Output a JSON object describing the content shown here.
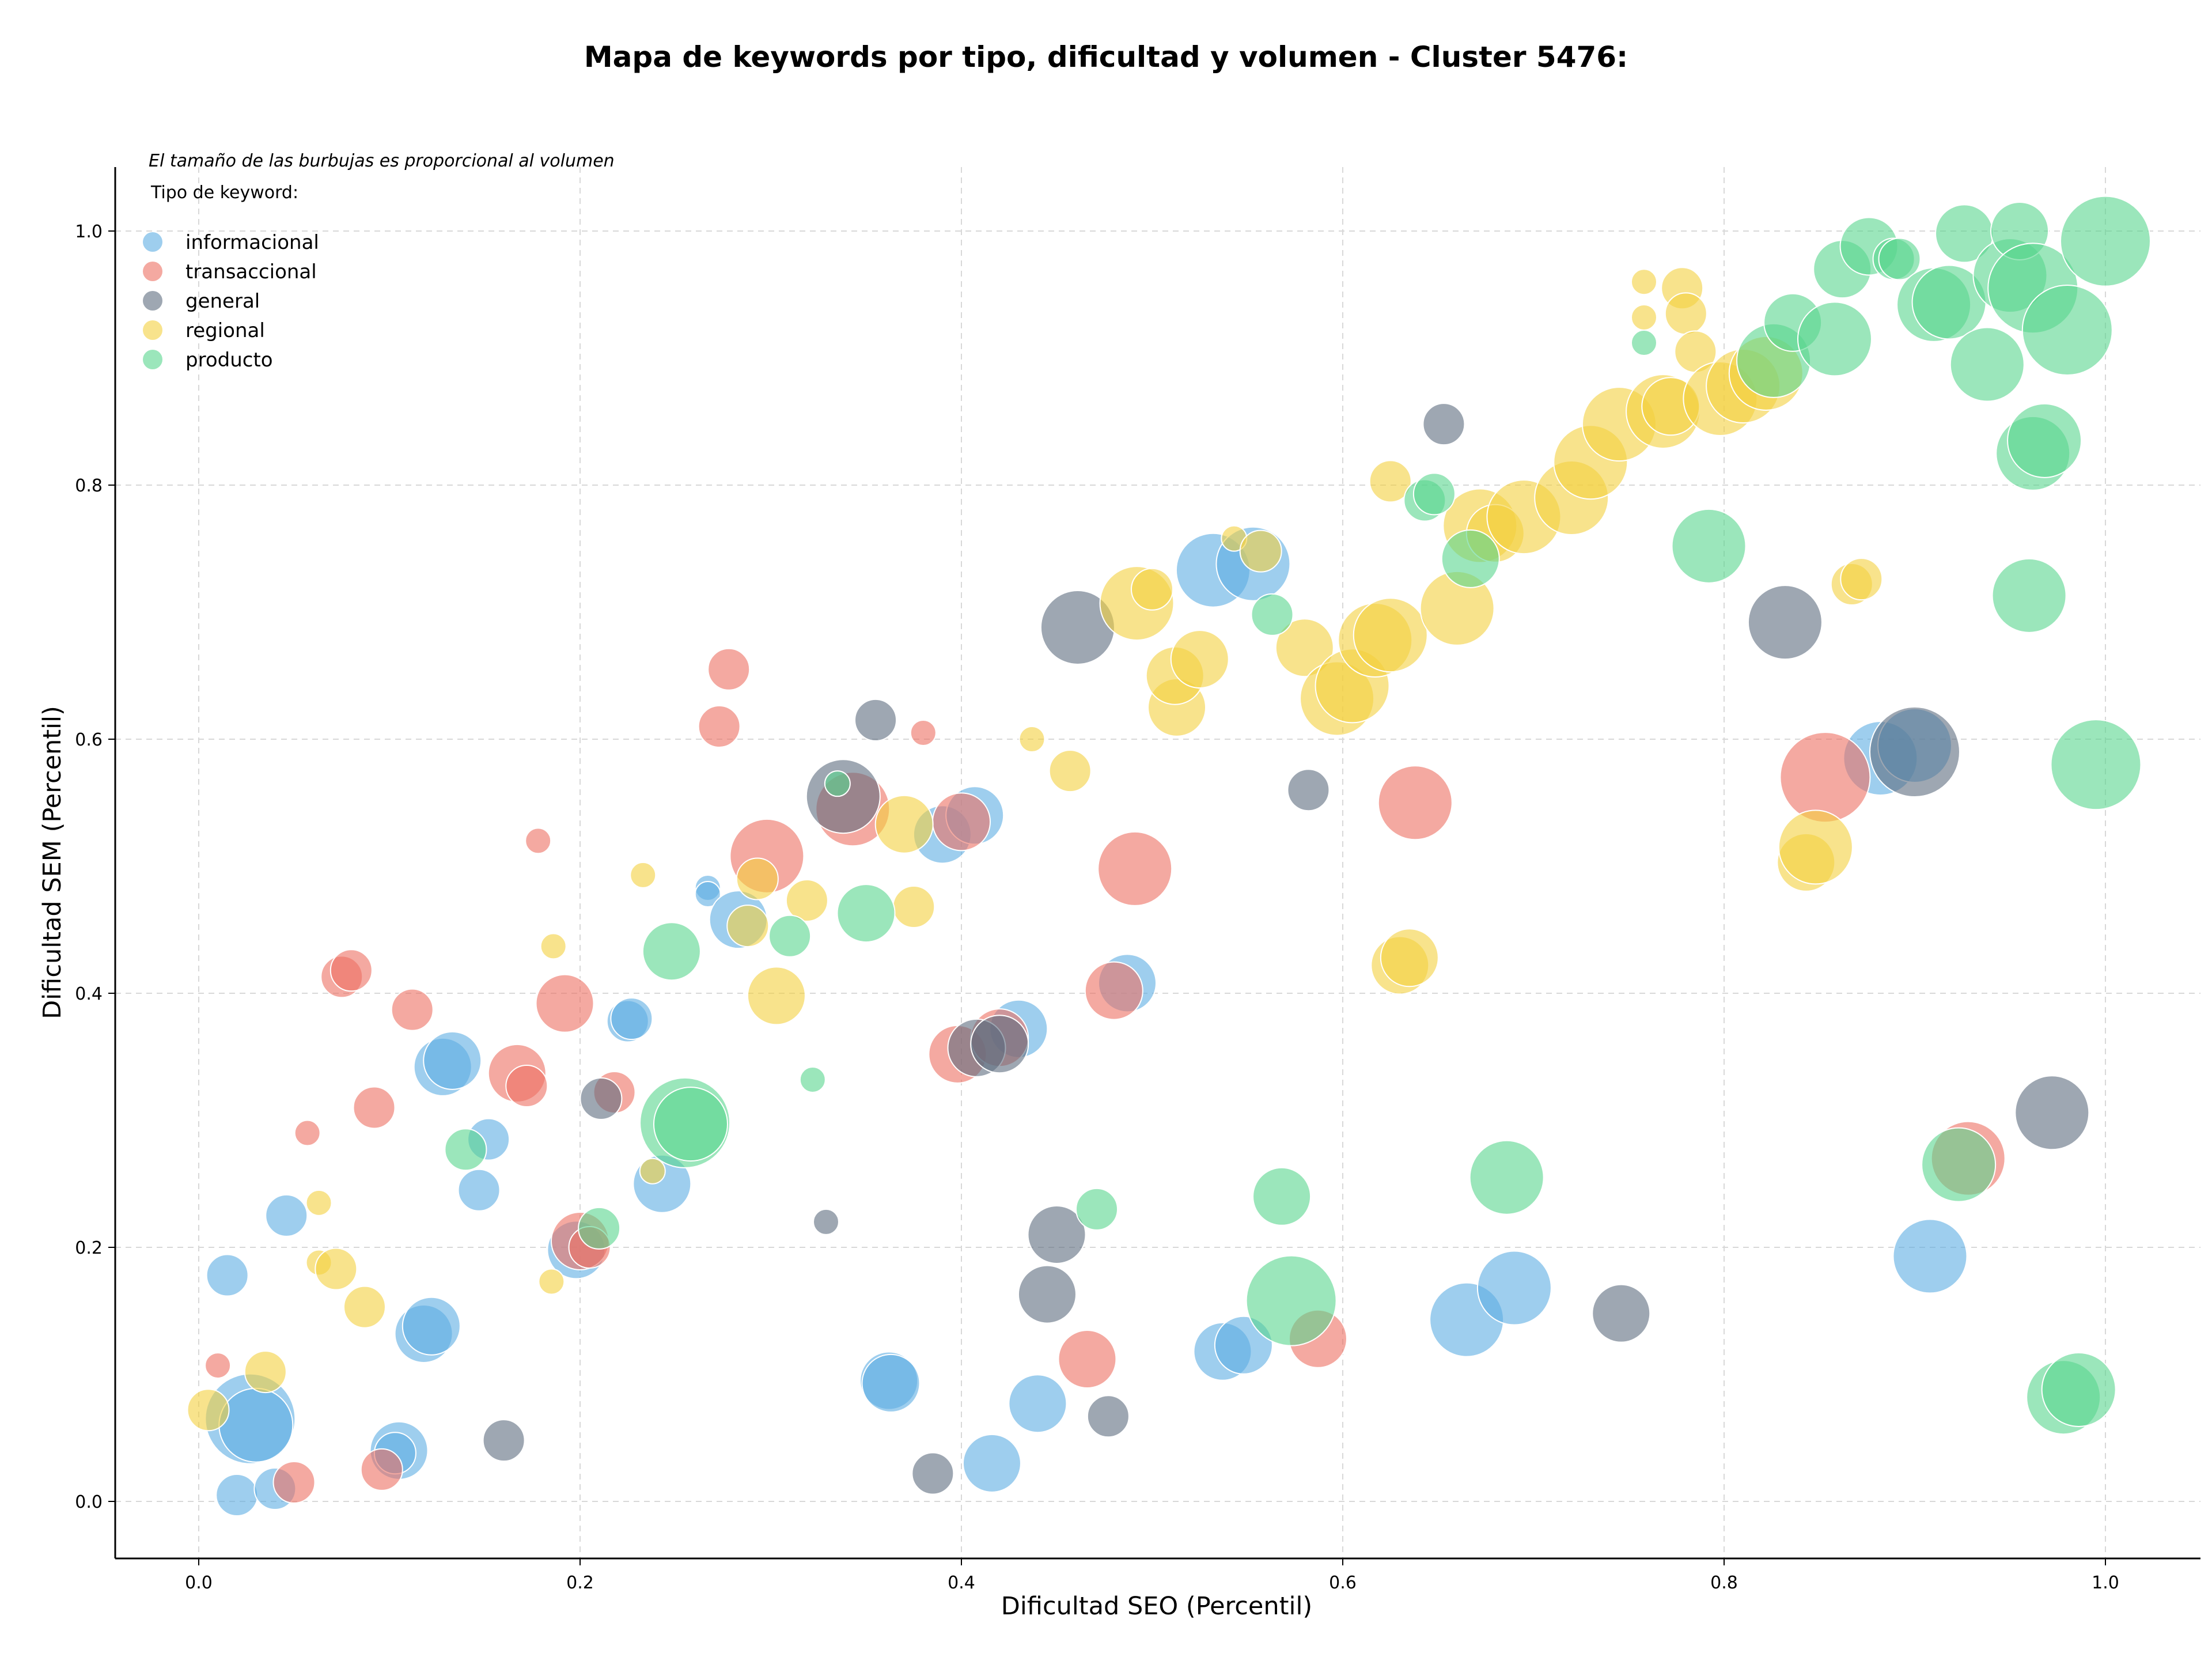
{
  "chart_data": {
    "type": "scatter",
    "title": "Mapa de keywords por tipo, dificultad y volumen - Cluster 5476:",
    "xlabel": "Dificultad SEO (Percentil)",
    "ylabel": "Dificultad SEM (Percentil)",
    "xlim": [
      -0.05,
      1.05
    ],
    "ylim": [
      -0.045,
      1.05
    ],
    "xticks": [
      "0.0",
      "0.2",
      "0.4",
      "0.6",
      "0.8",
      "1.0"
    ],
    "yticks": [
      "0.0",
      "0.2",
      "0.4",
      "0.6",
      "0.8",
      "1.0"
    ],
    "grid": true,
    "note": "El tamaño de las burbujas es proporcional al volumen",
    "legend_title": "Tipo de keyword:",
    "legend_position": "top-left",
    "series": [
      {
        "name": "informacional",
        "color": "#5dade2",
        "points": [
          [
            0.015,
            0.178,
            2
          ],
          [
            0.027,
            0.065,
            5
          ],
          [
            0.03,
            0.06,
            4
          ],
          [
            0.02,
            0.005,
            2
          ],
          [
            0.04,
            0.01,
            2
          ],
          [
            0.046,
            0.225,
            2
          ],
          [
            0.105,
            0.04,
            3
          ],
          [
            0.103,
            0.038,
            2
          ],
          [
            0.118,
            0.132,
            3
          ],
          [
            0.122,
            0.138,
            3
          ],
          [
            0.128,
            0.342,
            3
          ],
          [
            0.133,
            0.347,
            3
          ],
          [
            0.147,
            0.245,
            2
          ],
          [
            0.152,
            0.285,
            2
          ],
          [
            0.198,
            0.198,
            3
          ],
          [
            0.225,
            0.378,
            2
          ],
          [
            0.227,
            0.38,
            2
          ],
          [
            0.243,
            0.25,
            3
          ],
          [
            0.267,
            0.483,
            1
          ],
          [
            0.267,
            0.478,
            1
          ],
          [
            0.283,
            0.458,
            3
          ],
          [
            0.39,
            0.525,
            3
          ],
          [
            0.407,
            0.54,
            3
          ],
          [
            0.43,
            0.372,
            3
          ],
          [
            0.362,
            0.095,
            3
          ],
          [
            0.363,
            0.093,
            3
          ],
          [
            0.416,
            0.03,
            3
          ],
          [
            0.44,
            0.077,
            3
          ],
          [
            0.487,
            0.408,
            3
          ],
          [
            0.532,
            0.733,
            4
          ],
          [
            0.553,
            0.738,
            4
          ],
          [
            0.537,
            0.118,
            3
          ],
          [
            0.548,
            0.123,
            3
          ],
          [
            0.665,
            0.143,
            4
          ],
          [
            0.69,
            0.168,
            4
          ],
          [
            0.882,
            0.585,
            4
          ],
          [
            0.9,
            0.595,
            4
          ],
          [
            0.908,
            0.193,
            4
          ]
        ]
      },
      {
        "name": "transaccional",
        "color": "#ec7063",
        "points": [
          [
            0.01,
            0.107,
            1
          ],
          [
            0.05,
            0.015,
            2
          ],
          [
            0.057,
            0.29,
            1
          ],
          [
            0.075,
            0.413,
            2
          ],
          [
            0.08,
            0.418,
            2
          ],
          [
            0.092,
            0.31,
            2
          ],
          [
            0.096,
            0.025,
            2
          ],
          [
            0.112,
            0.387,
            2
          ],
          [
            0.167,
            0.337,
            3
          ],
          [
            0.172,
            0.327,
            2
          ],
          [
            0.178,
            0.52,
            1
          ],
          [
            0.192,
            0.392,
            3
          ],
          [
            0.2,
            0.205,
            3
          ],
          [
            0.205,
            0.2,
            2
          ],
          [
            0.218,
            0.322,
            2
          ],
          [
            0.273,
            0.61,
            2
          ],
          [
            0.278,
            0.655,
            2
          ],
          [
            0.298,
            0.508,
            4
          ],
          [
            0.343,
            0.545,
            4
          ],
          [
            0.38,
            0.605,
            1
          ],
          [
            0.398,
            0.352,
            3
          ],
          [
            0.4,
            0.535,
            3
          ],
          [
            0.42,
            0.365,
            3
          ],
          [
            0.48,
            0.402,
            3
          ],
          [
            0.466,
            0.112,
            3
          ],
          [
            0.491,
            0.498,
            4
          ],
          [
            0.587,
            0.128,
            3
          ],
          [
            0.638,
            0.55,
            4
          ],
          [
            0.853,
            0.57,
            5
          ],
          [
            0.928,
            0.27,
            4
          ]
        ]
      },
      {
        "name": "general",
        "color": "#5d6d7e",
        "points": [
          [
            0.16,
            0.048,
            2
          ],
          [
            0.211,
            0.317,
            2
          ],
          [
            0.329,
            0.22,
            1
          ],
          [
            0.338,
            0.555,
            4
          ],
          [
            0.355,
            0.615,
            2
          ],
          [
            0.385,
            0.022,
            2
          ],
          [
            0.408,
            0.357,
            3
          ],
          [
            0.42,
            0.36,
            3
          ],
          [
            0.445,
            0.163,
            3
          ],
          [
            0.45,
            0.21,
            3
          ],
          [
            0.461,
            0.688,
            4
          ],
          [
            0.477,
            0.067,
            2
          ],
          [
            0.582,
            0.56,
            2
          ],
          [
            0.653,
            0.848,
            2
          ],
          [
            0.746,
            0.148,
            3
          ],
          [
            0.832,
            0.692,
            4
          ],
          [
            0.9,
            0.59,
            5
          ],
          [
            0.972,
            0.306,
            4
          ]
        ]
      },
      {
        "name": "regional",
        "color": "#f4d03f",
        "points": [
          [
            0.005,
            0.072,
            2
          ],
          [
            0.035,
            0.102,
            2
          ],
          [
            0.063,
            0.235,
            1
          ],
          [
            0.063,
            0.188,
            1
          ],
          [
            0.072,
            0.183,
            2
          ],
          [
            0.087,
            0.153,
            2
          ],
          [
            0.185,
            0.173,
            1
          ],
          [
            0.186,
            0.437,
            1
          ],
          [
            0.233,
            0.493,
            1
          ],
          [
            0.238,
            0.26,
            1
          ],
          [
            0.288,
            0.453,
            2
          ],
          [
            0.293,
            0.49,
            2
          ],
          [
            0.303,
            0.398,
            3
          ],
          [
            0.319,
            0.473,
            2
          ],
          [
            0.37,
            0.533,
            3
          ],
          [
            0.375,
            0.468,
            2
          ],
          [
            0.437,
            0.6,
            1
          ],
          [
            0.457,
            0.575,
            2
          ],
          [
            0.492,
            0.707,
            4
          ],
          [
            0.5,
            0.718,
            2
          ],
          [
            0.513,
            0.625,
            3
          ],
          [
            0.512,
            0.65,
            3
          ],
          [
            0.525,
            0.663,
            3
          ],
          [
            0.543,
            0.758,
            1
          ],
          [
            0.557,
            0.748,
            2
          ],
          [
            0.58,
            0.672,
            3
          ],
          [
            0.597,
            0.632,
            4
          ],
          [
            0.605,
            0.642,
            4
          ],
          [
            0.617,
            0.678,
            4
          ],
          [
            0.625,
            0.682,
            4
          ],
          [
            0.625,
            0.803,
            2
          ],
          [
            0.63,
            0.422,
            3
          ],
          [
            0.635,
            0.428,
            3
          ],
          [
            0.66,
            0.703,
            4
          ],
          [
            0.672,
            0.768,
            4
          ],
          [
            0.68,
            0.762,
            3
          ],
          [
            0.695,
            0.775,
            4
          ],
          [
            0.72,
            0.79,
            4
          ],
          [
            0.73,
            0.818,
            4
          ],
          [
            0.745,
            0.848,
            4
          ],
          [
            0.758,
            0.96,
            1
          ],
          [
            0.758,
            0.932,
            1
          ],
          [
            0.768,
            0.858,
            4
          ],
          [
            0.772,
            0.862,
            3
          ],
          [
            0.778,
            0.955,
            2
          ],
          [
            0.78,
            0.935,
            2
          ],
          [
            0.785,
            0.905,
            2
          ],
          [
            0.798,
            0.868,
            4
          ],
          [
            0.81,
            0.878,
            4
          ],
          [
            0.822,
            0.888,
            4
          ],
          [
            0.843,
            0.503,
            3
          ],
          [
            0.848,
            0.515,
            4
          ],
          [
            0.867,
            0.722,
            2
          ],
          [
            0.872,
            0.726,
            2
          ]
        ]
      },
      {
        "name": "producto",
        "color": "#58d68d",
        "points": [
          [
            0.14,
            0.277,
            2
          ],
          [
            0.21,
            0.215,
            2
          ],
          [
            0.248,
            0.433,
            3
          ],
          [
            0.255,
            0.298,
            5
          ],
          [
            0.258,
            0.297,
            4
          ],
          [
            0.31,
            0.445,
            2
          ],
          [
            0.322,
            0.332,
            1
          ],
          [
            0.335,
            0.565,
            1
          ],
          [
            0.35,
            0.463,
            3
          ],
          [
            0.471,
            0.23,
            2
          ],
          [
            0.563,
            0.698,
            2
          ],
          [
            0.568,
            0.24,
            3
          ],
          [
            0.573,
            0.158,
            5
          ],
          [
            0.643,
            0.788,
            2
          ],
          [
            0.648,
            0.793,
            2
          ],
          [
            0.667,
            0.742,
            3
          ],
          [
            0.686,
            0.255,
            4
          ],
          [
            0.758,
            0.912,
            1
          ],
          [
            0.792,
            0.752,
            4
          ],
          [
            0.826,
            0.898,
            4
          ],
          [
            0.836,
            0.928,
            3
          ],
          [
            0.858,
            0.915,
            4
          ],
          [
            0.862,
            0.97,
            3
          ],
          [
            0.876,
            0.988,
            3
          ],
          [
            0.889,
            0.978,
            2
          ],
          [
            0.892,
            0.978,
            2
          ],
          [
            0.91,
            0.942,
            4
          ],
          [
            0.918,
            0.944,
            4
          ],
          [
            0.926,
            0.998,
            3
          ],
          [
            0.938,
            0.895,
            4
          ],
          [
            0.95,
            0.965,
            4
          ],
          [
            0.955,
            1.0,
            3
          ],
          [
            0.96,
            0.713,
            4
          ],
          [
            0.962,
            0.955,
            5
          ],
          [
            0.962,
            0.825,
            4
          ],
          [
            0.968,
            0.835,
            4
          ],
          [
            0.98,
            0.922,
            5
          ],
          [
            0.995,
            0.58,
            5
          ],
          [
            1.0,
            0.992,
            5
          ],
          [
            0.978,
            0.082,
            4
          ],
          [
            0.986,
            0.088,
            4
          ],
          [
            0.923,
            0.265,
            4
          ]
        ]
      }
    ]
  }
}
